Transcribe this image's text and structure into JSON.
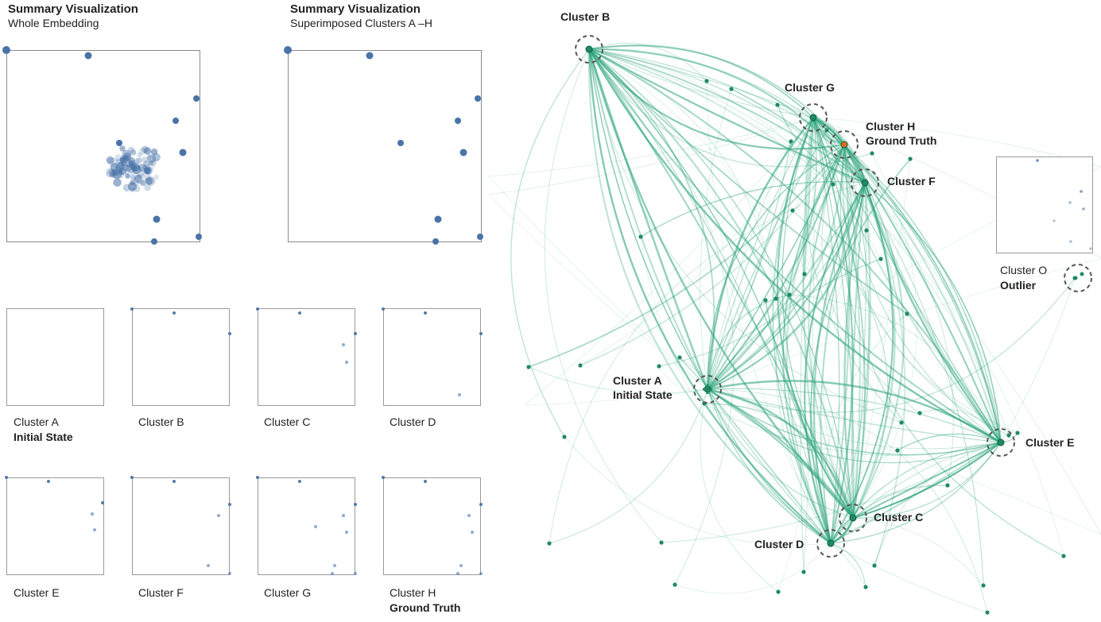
{
  "summary": {
    "whole": {
      "title": "Summary Visualization",
      "subtitle": "Whole Embedding"
    },
    "superimposed": {
      "title": "Summary Visualization",
      "subtitle": "Superimposed Clusters A –H"
    }
  },
  "clusters": [
    {
      "name": "Cluster A",
      "tag": "Initial State"
    },
    {
      "name": "Cluster B",
      "tag": ""
    },
    {
      "name": "Cluster C",
      "tag": ""
    },
    {
      "name": "Cluster D",
      "tag": ""
    },
    {
      "name": "Cluster E",
      "tag": ""
    },
    {
      "name": "Cluster F",
      "tag": ""
    },
    {
      "name": "Cluster G",
      "tag": ""
    },
    {
      "name": "Cluster H",
      "tag": "Ground Truth"
    }
  ],
  "graph": {
    "labels": {
      "b": "Cluster B",
      "g": "Cluster G",
      "h": "Cluster H",
      "h_tag": "Ground Truth",
      "f": "Cluster F",
      "a": "Cluster A",
      "a_tag": "Initial State",
      "e": "Cluster E",
      "c": "Cluster C",
      "d": "Cluster D",
      "o": "Cluster O",
      "o_tag": "Outlier"
    }
  },
  "colors": {
    "point": "#4a73a8",
    "edge": "#2aa37a",
    "node": "#1f8a62",
    "ground_truth": "#e06a1c",
    "frame": "#8a8a8a"
  }
}
